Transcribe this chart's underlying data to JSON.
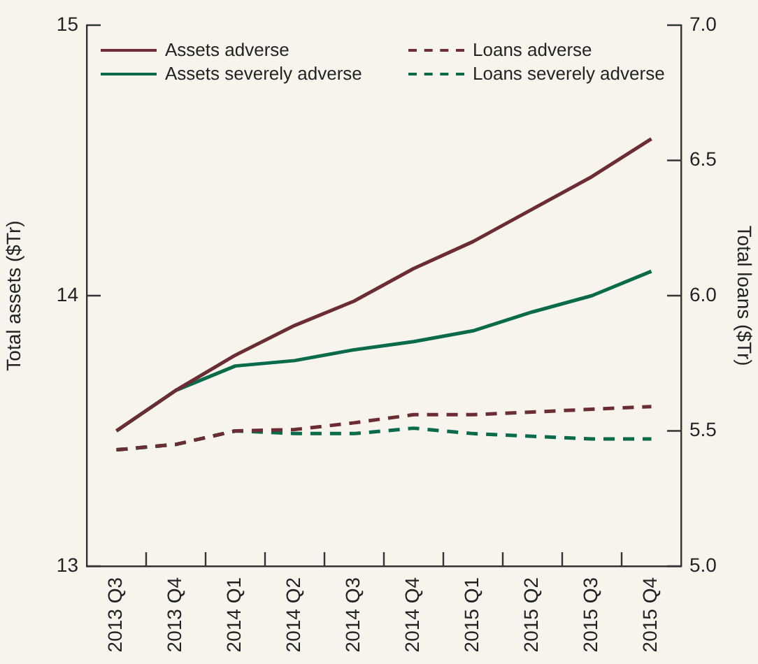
{
  "chart_data": {
    "type": "line",
    "categories": [
      "2013 Q3",
      "2013 Q4",
      "2014 Q1",
      "2014 Q2",
      "2014 Q3",
      "2014 Q4",
      "2015 Q1",
      "2015 Q2",
      "2015 Q3",
      "2015 Q4"
    ],
    "ylabel": "Total assets ($Tr)",
    "y2label": "Total loans ($Tr)",
    "ylim": [
      13,
      15
    ],
    "yticks": [
      13,
      14,
      15
    ],
    "y2lim": [
      5.0,
      7.0
    ],
    "y2ticks": [
      {
        "value": 5,
        "label": "5.0"
      },
      {
        "value": 5.5,
        "label": "5.5"
      },
      {
        "value": 6,
        "label": "6.0"
      },
      {
        "value": 6.5,
        "label": "6.5"
      },
      {
        "value": 7,
        "label": "7.0"
      }
    ],
    "legend": "top left",
    "grid": false,
    "marker": "none",
    "series": [
      {
        "name": "Assets adverse",
        "color": "#6b2d33",
        "line_style": "solid",
        "values": [
          13.5,
          13.65,
          13.78,
          13.89,
          13.98,
          14.1,
          14.2,
          14.32,
          14.44,
          14.58
        ]
      },
      {
        "name": "Loans adverse",
        "color": "#6b2d33",
        "line_style": "dashed",
        "axis": "y2",
        "values": [
          5.43,
          5.45,
          5.5,
          5.505,
          5.53,
          5.56,
          5.56,
          5.57,
          5.58,
          5.59
        ]
      },
      {
        "name": "Assets severely adverse",
        "color": "#0a6b4a",
        "line_style": "solid",
        "values": [
          13.5,
          13.65,
          13.74,
          13.76,
          13.8,
          13.83,
          13.87,
          13.94,
          14.0,
          14.09
        ]
      },
      {
        "name": "Loans severely adverse",
        "color": "#0a6b4a",
        "line_style": "dashed",
        "axis": "y2",
        "values": [
          5.43,
          5.45,
          5.5,
          5.49,
          5.49,
          5.51,
          5.49,
          5.48,
          5.47,
          5.47
        ]
      }
    ]
  }
}
